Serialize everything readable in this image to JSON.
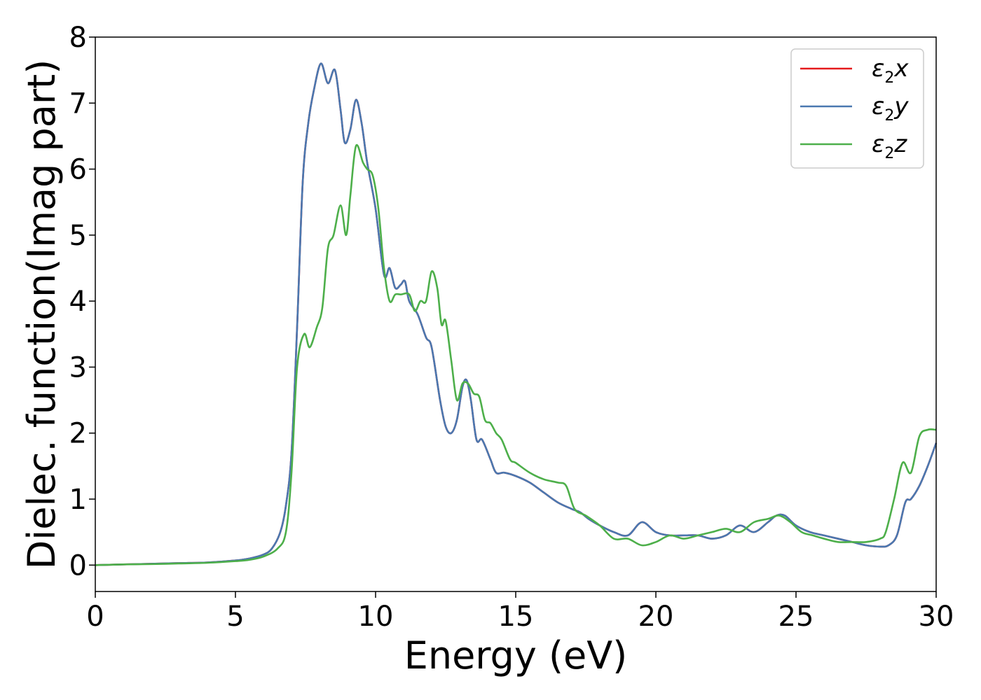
{
  "chart_data": {
    "type": "line",
    "xlabel": "Energy (eV)",
    "ylabel": "Dielec. function(Imag part)",
    "xlim": [
      0,
      30
    ],
    "ylim": [
      -0.4,
      8
    ],
    "xticks": [
      0,
      5,
      10,
      15,
      20,
      25,
      30
    ],
    "xtick_labels": [
      "0",
      "5",
      "10",
      "15",
      "20",
      "25",
      "30"
    ],
    "yticks": [
      0,
      1,
      2,
      3,
      4,
      5,
      6,
      7,
      8
    ],
    "ytick_labels": [
      "0",
      "1",
      "2",
      "3",
      "4",
      "5",
      "6",
      "7",
      "8"
    ],
    "grid": false,
    "legend_position": "top-right",
    "series": [
      {
        "name": "ε2x",
        "legend_base": "ε",
        "legend_sub": "2",
        "legend_tail": "x",
        "color": "#e41a1c",
        "x": [
          0,
          1,
          2,
          3,
          4,
          5,
          5.5,
          6,
          6.3,
          6.6,
          6.8,
          7,
          7.2,
          7.4,
          7.6,
          7.8,
          8.05,
          8.3,
          8.55,
          8.75,
          8.9,
          9.1,
          9.3,
          9.5,
          9.7,
          10,
          10.3,
          10.5,
          10.7,
          10.9,
          11.05,
          11.2,
          11.5,
          11.8,
          12,
          12.3,
          12.5,
          12.7,
          12.9,
          13.1,
          13.25,
          13.4,
          13.6,
          13.8,
          14.1,
          14.3,
          14.6,
          15,
          15.5,
          16,
          16.5,
          17,
          17.3,
          17.6,
          18,
          18.5,
          19,
          19.5,
          20,
          20.5,
          21,
          21.5,
          22,
          22.5,
          23,
          23.5,
          24,
          24.3,
          24.6,
          25,
          25.5,
          26,
          26.5,
          27,
          27.5,
          28,
          28.3,
          28.6,
          28.9,
          29.1,
          29.4,
          29.7,
          30
        ],
        "y": [
          0,
          0.01,
          0.02,
          0.03,
          0.04,
          0.07,
          0.1,
          0.16,
          0.25,
          0.5,
          0.9,
          1.7,
          3.6,
          5.8,
          6.7,
          7.2,
          7.6,
          7.3,
          7.5,
          6.9,
          6.4,
          6.6,
          7.05,
          6.7,
          6.1,
          5.4,
          4.4,
          4.5,
          4.2,
          4.25,
          4.3,
          4.0,
          3.8,
          3.45,
          3.3,
          2.5,
          2.1,
          2.0,
          2.2,
          2.7,
          2.8,
          2.5,
          1.9,
          1.9,
          1.6,
          1.4,
          1.4,
          1.35,
          1.25,
          1.1,
          0.95,
          0.85,
          0.8,
          0.7,
          0.6,
          0.5,
          0.45,
          0.65,
          0.5,
          0.45,
          0.45,
          0.45,
          0.4,
          0.45,
          0.6,
          0.5,
          0.65,
          0.75,
          0.75,
          0.6,
          0.5,
          0.45,
          0.4,
          0.35,
          0.3,
          0.28,
          0.3,
          0.45,
          0.95,
          1.0,
          1.2,
          1.5,
          1.85
        ]
      },
      {
        "name": "ε2y",
        "legend_base": "ε",
        "legend_sub": "2",
        "legend_tail": "y",
        "color": "#4a78b0",
        "x": [
          0,
          1,
          2,
          3,
          4,
          5,
          5.5,
          6,
          6.3,
          6.6,
          6.8,
          7,
          7.2,
          7.4,
          7.6,
          7.8,
          8.05,
          8.3,
          8.55,
          8.75,
          8.9,
          9.1,
          9.3,
          9.5,
          9.7,
          10,
          10.3,
          10.5,
          10.7,
          10.9,
          11.05,
          11.2,
          11.5,
          11.8,
          12,
          12.3,
          12.5,
          12.7,
          12.9,
          13.1,
          13.25,
          13.4,
          13.6,
          13.8,
          14.1,
          14.3,
          14.6,
          15,
          15.5,
          16,
          16.5,
          17,
          17.3,
          17.6,
          18,
          18.5,
          19,
          19.5,
          20,
          20.5,
          21,
          21.5,
          22,
          22.5,
          23,
          23.5,
          24,
          24.3,
          24.6,
          25,
          25.5,
          26,
          26.5,
          27,
          27.5,
          28,
          28.3,
          28.6,
          28.9,
          29.1,
          29.4,
          29.7,
          30
        ],
        "y": [
          0,
          0.01,
          0.02,
          0.03,
          0.04,
          0.07,
          0.1,
          0.16,
          0.25,
          0.5,
          0.9,
          1.7,
          3.6,
          5.8,
          6.7,
          7.2,
          7.6,
          7.3,
          7.5,
          6.9,
          6.4,
          6.6,
          7.05,
          6.7,
          6.1,
          5.4,
          4.4,
          4.5,
          4.2,
          4.25,
          4.3,
          4.0,
          3.8,
          3.45,
          3.3,
          2.5,
          2.1,
          2.0,
          2.2,
          2.7,
          2.8,
          2.5,
          1.9,
          1.9,
          1.6,
          1.4,
          1.4,
          1.35,
          1.25,
          1.1,
          0.95,
          0.85,
          0.8,
          0.7,
          0.6,
          0.5,
          0.45,
          0.65,
          0.5,
          0.45,
          0.45,
          0.45,
          0.4,
          0.45,
          0.6,
          0.5,
          0.65,
          0.75,
          0.75,
          0.6,
          0.5,
          0.45,
          0.4,
          0.35,
          0.3,
          0.28,
          0.3,
          0.45,
          0.95,
          1.0,
          1.2,
          1.5,
          1.85
        ]
      },
      {
        "name": "ε2z",
        "legend_base": "ε",
        "legend_sub": "2",
        "legend_tail": "z",
        "color": "#4daf4a",
        "x": [
          0,
          1,
          2,
          3,
          4,
          5,
          5.5,
          6,
          6.5,
          6.8,
          7,
          7.2,
          7.45,
          7.65,
          7.9,
          8.1,
          8.3,
          8.5,
          8.75,
          8.95,
          9.1,
          9.3,
          9.55,
          9.7,
          9.9,
          10.1,
          10.3,
          10.5,
          10.7,
          10.9,
          11.2,
          11.4,
          11.6,
          11.8,
          12,
          12.2,
          12.35,
          12.5,
          12.7,
          12.9,
          13.1,
          13.3,
          13.5,
          13.7,
          13.9,
          14.1,
          14.3,
          14.5,
          14.8,
          15,
          15.5,
          16,
          16.5,
          16.8,
          17.1,
          17.5,
          18,
          18.5,
          19,
          19.5,
          20,
          20.5,
          21,
          21.5,
          22,
          22.5,
          23,
          23.5,
          24,
          24.4,
          24.8,
          25.2,
          25.6,
          26,
          26.5,
          27,
          27.5,
          28,
          28.2,
          28.5,
          28.8,
          29.1,
          29.4,
          29.7,
          30
        ],
        "y": [
          0,
          0.01,
          0.015,
          0.025,
          0.035,
          0.06,
          0.08,
          0.13,
          0.25,
          0.5,
          1.4,
          3.0,
          3.5,
          3.3,
          3.6,
          3.9,
          4.8,
          5.0,
          5.45,
          5.0,
          5.6,
          6.35,
          6.1,
          6.0,
          5.9,
          5.4,
          4.5,
          4.0,
          4.1,
          4.1,
          4.1,
          3.85,
          4.0,
          4.0,
          4.45,
          4.2,
          3.65,
          3.7,
          3.1,
          2.5,
          2.75,
          2.75,
          2.6,
          2.55,
          2.2,
          2.15,
          2.0,
          1.9,
          1.6,
          1.55,
          1.4,
          1.3,
          1.25,
          1.2,
          0.85,
          0.75,
          0.6,
          0.4,
          0.4,
          0.3,
          0.35,
          0.45,
          0.4,
          0.45,
          0.5,
          0.55,
          0.5,
          0.65,
          0.7,
          0.75,
          0.65,
          0.5,
          0.45,
          0.4,
          0.35,
          0.35,
          0.35,
          0.4,
          0.5,
          1.0,
          1.55,
          1.4,
          1.95,
          2.05,
          2.05
        ]
      }
    ]
  }
}
